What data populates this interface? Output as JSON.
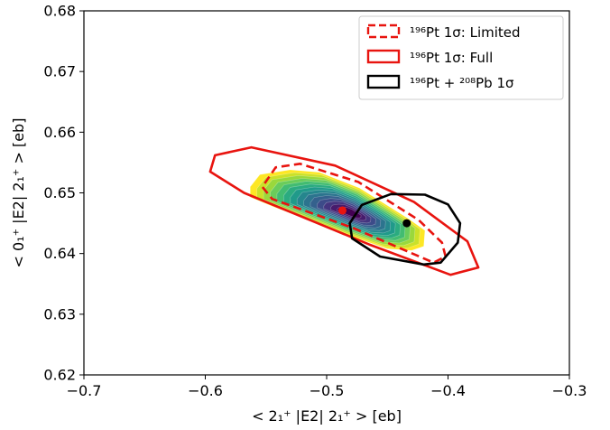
{
  "chart_data": {
    "type": "scatter",
    "xlabel": "< 2₁⁺ |E2| 2₁⁺ > [eb]",
    "ylabel": "< 0₁⁺ |E2| 2₁⁺ > [eb]",
    "xlim": [
      -0.7,
      -0.3
    ],
    "ylim": [
      0.62,
      0.68
    ],
    "xticks": [
      -0.7,
      -0.6,
      -0.5,
      -0.4,
      -0.3
    ],
    "xtick_labels": [
      "−0.7",
      "−0.6",
      "−0.5",
      "−0.4",
      "−0.3"
    ],
    "yticks": [
      0.62,
      0.63,
      0.64,
      0.65,
      0.66,
      0.67,
      0.68
    ],
    "ytick_labels": [
      "0.62",
      "0.63",
      "0.64",
      "0.65",
      "0.66",
      "0.67",
      "0.68"
    ],
    "grid": false,
    "legend_position": "top-right",
    "legend": [
      {
        "label": "¹⁹⁶Pt 1σ: Limited",
        "style": "dashed",
        "color": "#e8140f"
      },
      {
        "label": "¹⁹⁶Pt 1σ: Full",
        "style": "solid",
        "color": "#e8140f"
      },
      {
        "label": "¹⁹⁶Pt + ²⁰⁸Pb 1σ",
        "style": "solid",
        "color": "#000000"
      }
    ],
    "ellipses": [
      {
        "name": "¹⁹⁶Pt 1σ: Limited",
        "style": "dashed",
        "color": "#e8140f",
        "polygon": [
          [
            -0.478,
            0.6442
          ],
          [
            -0.412,
            0.6385
          ],
          [
            -0.402,
            0.6395
          ],
          [
            -0.405,
            0.6418
          ],
          [
            -0.424,
            0.6455
          ],
          [
            -0.474,
            0.6518
          ],
          [
            -0.522,
            0.6548
          ],
          [
            -0.542,
            0.6542
          ],
          [
            -0.553,
            0.651
          ],
          [
            -0.545,
            0.649
          ],
          [
            -0.478,
            0.6442
          ]
        ]
      },
      {
        "name": "¹⁹⁶Pt 1σ: Full",
        "style": "solid",
        "color": "#e8140f",
        "polygon": [
          [
            -0.465,
            0.6415
          ],
          [
            -0.398,
            0.6365
          ],
          [
            -0.375,
            0.6377
          ],
          [
            -0.384,
            0.642
          ],
          [
            -0.428,
            0.6485
          ],
          [
            -0.493,
            0.6545
          ],
          [
            -0.562,
            0.6575
          ],
          [
            -0.592,
            0.6562
          ],
          [
            -0.596,
            0.6535
          ],
          [
            -0.568,
            0.65
          ],
          [
            -0.465,
            0.6415
          ]
        ]
      },
      {
        "name": "¹⁹⁶Pt + ²⁰⁸Pb 1σ",
        "style": "solid",
        "color": "#000000",
        "polygon": [
          [
            -0.42,
            0.6382
          ],
          [
            -0.406,
            0.6385
          ],
          [
            -0.392,
            0.6418
          ],
          [
            -0.39,
            0.645
          ],
          [
            -0.4,
            0.6481
          ],
          [
            -0.419,
            0.6497
          ],
          [
            -0.447,
            0.6498
          ],
          [
            -0.471,
            0.648
          ],
          [
            -0.481,
            0.645
          ],
          [
            -0.479,
            0.6425
          ],
          [
            -0.456,
            0.6395
          ],
          [
            -0.42,
            0.6382
          ]
        ]
      }
    ],
    "contour": {
      "colormap": "viridis",
      "center": [
        -0.48,
        0.6467
      ],
      "outline": [
        [
          -0.43,
          0.6405
        ],
        [
          -0.42,
          0.6412
        ],
        [
          -0.419,
          0.6438
        ],
        [
          -0.433,
          0.6458
        ],
        [
          -0.473,
          0.6508
        ],
        [
          -0.506,
          0.6534
        ],
        [
          -0.53,
          0.6538
        ],
        [
          -0.555,
          0.653
        ],
        [
          -0.563,
          0.651
        ],
        [
          -0.563,
          0.6493
        ],
        [
          -0.545,
          0.6478
        ],
        [
          -0.485,
          0.6432
        ],
        [
          -0.45,
          0.6408
        ],
        [
          -0.43,
          0.6405
        ]
      ]
    },
    "points": [
      {
        "name": "best fit ¹⁹⁶Pt",
        "x": -0.487,
        "y": 0.6471,
        "color": "#e8140f"
      },
      {
        "name": "best fit ¹⁹⁶Pt + ²⁰⁸Pb",
        "x": -0.434,
        "y": 0.645,
        "color": "#000000"
      }
    ]
  }
}
